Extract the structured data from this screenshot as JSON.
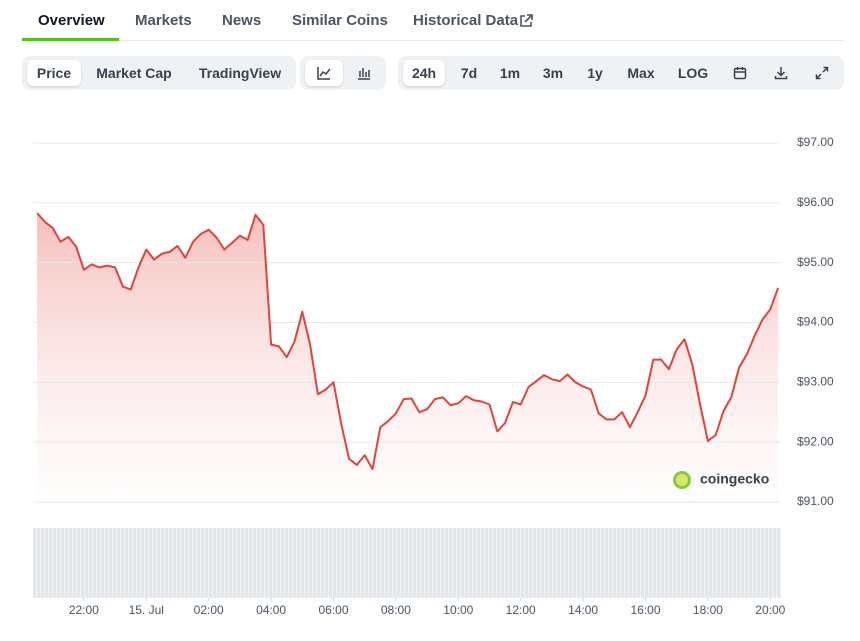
{
  "tabs": [
    "Overview",
    "Markets",
    "News",
    "Similar Coins",
    "Historical Data"
  ],
  "view_buttons": [
    "Price",
    "Market Cap",
    "TradingView"
  ],
  "range_buttons": [
    "24h",
    "7d",
    "1m",
    "3m",
    "1y",
    "Max",
    "LOG"
  ],
  "watermark": "coingecko",
  "chart_data": {
    "type": "line",
    "color": "#e5423a",
    "grid": true,
    "x": [
      20.5,
      20.75,
      21,
      21.25,
      21.5,
      21.75,
      22,
      22.25,
      22.5,
      22.75,
      23,
      23.25,
      23.5,
      23.75,
      24,
      24.25,
      24.5,
      24.75,
      25,
      25.25,
      25.5,
      25.75,
      26,
      26.25,
      26.5,
      26.75,
      27,
      27.25,
      27.5,
      27.75,
      28,
      28.25,
      28.5,
      28.75,
      29,
      29.25,
      29.5,
      29.75,
      30,
      30.25,
      30.5,
      30.75,
      31,
      31.25,
      31.5,
      31.75,
      32,
      32.25,
      32.5,
      32.75,
      33,
      33.25,
      33.5,
      33.75,
      34,
      34.25,
      34.5,
      34.75,
      35,
      35.25,
      35.5,
      35.75,
      36,
      36.25,
      36.5,
      36.75,
      37,
      37.25,
      37.5,
      37.75,
      38,
      38.25,
      38.5,
      38.75,
      39,
      39.25,
      39.5,
      39.75,
      40,
      40.25,
      40.5,
      40.75,
      41,
      41.25,
      41.5,
      41.75,
      42,
      42.25,
      42.5,
      42.75,
      43,
      43.25,
      43.5,
      43.75,
      44,
      44.25
    ],
    "values": [
      95.83,
      95.68,
      95.58,
      95.35,
      95.43,
      95.27,
      94.88,
      94.97,
      94.92,
      94.95,
      94.92,
      94.6,
      94.55,
      94.92,
      95.22,
      95.05,
      95.15,
      95.18,
      95.28,
      95.08,
      95.35,
      95.48,
      95.55,
      95.42,
      95.22,
      95.33,
      95.45,
      95.38,
      95.8,
      95.63,
      93.63,
      93.6,
      93.42,
      93.68,
      94.18,
      93.63,
      92.8,
      92.88,
      93.0,
      92.3,
      91.72,
      91.62,
      91.78,
      91.55,
      92.25,
      92.35,
      92.48,
      92.72,
      92.73,
      92.5,
      92.55,
      92.72,
      92.75,
      92.62,
      92.65,
      92.77,
      92.7,
      92.68,
      92.63,
      92.18,
      92.32,
      92.67,
      92.63,
      92.92,
      93.02,
      93.12,
      93.05,
      93.02,
      93.13,
      93.0,
      92.93,
      92.88,
      92.48,
      92.38,
      92.38,
      92.5,
      92.25,
      92.5,
      92.78,
      93.38,
      93.38,
      93.22,
      93.55,
      93.72,
      93.3,
      92.63,
      92.02,
      92.12,
      92.52,
      92.75,
      93.25,
      93.47,
      93.78,
      94.05,
      94.22,
      94.58
    ],
    "xlim": [
      20.37,
      44.31
    ],
    "xticks": [
      {
        "value": 22,
        "label": "22:00"
      },
      {
        "value": 24,
        "label": "15. Jul"
      },
      {
        "value": 26,
        "label": "02:00"
      },
      {
        "value": 28,
        "label": "04:00"
      },
      {
        "value": 30,
        "label": "06:00"
      },
      {
        "value": 32,
        "label": "08:00"
      },
      {
        "value": 34,
        "label": "10:00"
      },
      {
        "value": 36,
        "label": "12:00"
      },
      {
        "value": 38,
        "label": "14:00"
      },
      {
        "value": 40,
        "label": "16:00"
      },
      {
        "value": 42,
        "label": "18:00"
      },
      {
        "value": 44,
        "label": "20:00"
      }
    ],
    "ylim": [
      91,
      97.4
    ],
    "yticks": [
      {
        "value": 91,
        "label": "$91.00"
      },
      {
        "value": 92,
        "label": "$92.00"
      },
      {
        "value": 93,
        "label": "$93.00"
      },
      {
        "value": 94,
        "label": "$94.00"
      },
      {
        "value": 95,
        "label": "$95.00"
      },
      {
        "value": 96,
        "label": "$96.00"
      },
      {
        "value": 97,
        "label": "$97.00"
      }
    ]
  }
}
